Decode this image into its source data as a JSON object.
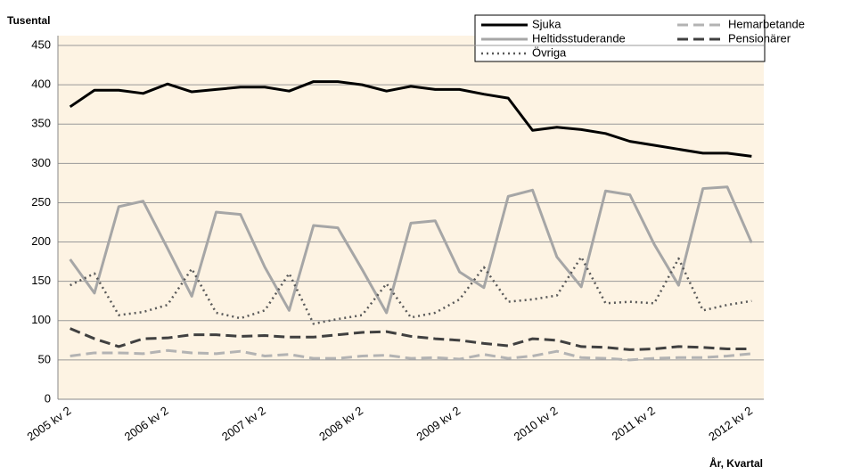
{
  "chart_data": {
    "type": "line",
    "y_label": "Tusental",
    "x_label": "År, Kvartal",
    "categories": [
      "2005 kv 2",
      null,
      null,
      null,
      "2006 kv 2",
      null,
      null,
      null,
      "2007 kv 2",
      null,
      null,
      null,
      "2008 kv 2",
      null,
      null,
      null,
      "2009 kv 2",
      null,
      null,
      null,
      "2010 kv 2",
      null,
      null,
      null,
      "2011 kv 2",
      null,
      null,
      null,
      "2012 kv 2"
    ],
    "series": [
      {
        "name": "Sjuka",
        "color": "#000000",
        "dash": "solid",
        "width": 3,
        "values": [
          372,
          393,
          393,
          389,
          401,
          391,
          394,
          397,
          397,
          392,
          404,
          404,
          400,
          392,
          398,
          394,
          394,
          388,
          383,
          342,
          346,
          343,
          338,
          328,
          323,
          318,
          313,
          313,
          309
        ]
      },
      {
        "name": "Hemarbetande",
        "color": "#b3b3b3",
        "dash": "dashed",
        "width": 3,
        "values": [
          55,
          59,
          59,
          58,
          62,
          59,
          58,
          61,
          55,
          57,
          52,
          52,
          55,
          56,
          52,
          53,
          51,
          57,
          52,
          55,
          61,
          53,
          52,
          50,
          52,
          53,
          53,
          55,
          58
        ]
      },
      {
        "name": "Heltidsstuderande",
        "color": "#a6a6a6",
        "dash": "solid",
        "width": 3,
        "values": [
          178,
          135,
          245,
          252,
          192,
          131,
          238,
          235,
          168,
          113,
          221,
          218,
          165,
          110,
          224,
          227,
          162,
          142,
          258,
          266,
          181,
          143,
          265,
          260,
          197,
          145,
          268,
          270,
          199
        ]
      },
      {
        "name": "Pensionärer",
        "color": "#404040",
        "dash": "dashed",
        "width": 3,
        "values": [
          90,
          77,
          67,
          77,
          78,
          82,
          82,
          80,
          81,
          79,
          79,
          82,
          85,
          86,
          80,
          77,
          75,
          71,
          68,
          77,
          75,
          67,
          66,
          63,
          64,
          67,
          66,
          64,
          64
        ]
      },
      {
        "name": "Övriga",
        "color": "#595959",
        "dash": "dotted",
        "width": 2.5,
        "values": [
          145,
          160,
          107,
          111,
          120,
          166,
          110,
          103,
          113,
          160,
          96,
          102,
          107,
          147,
          104,
          110,
          127,
          168,
          124,
          127,
          132,
          181,
          122,
          124,
          122,
          179,
          113,
          120,
          125
        ]
      }
    ],
    "ylim": [
      0,
      450
    ],
    "yticks": [
      0,
      50,
      100,
      150,
      200,
      250,
      300,
      350,
      400,
      450
    ],
    "grid": true,
    "background": "#fdf3e3",
    "legend": "top-right"
  }
}
